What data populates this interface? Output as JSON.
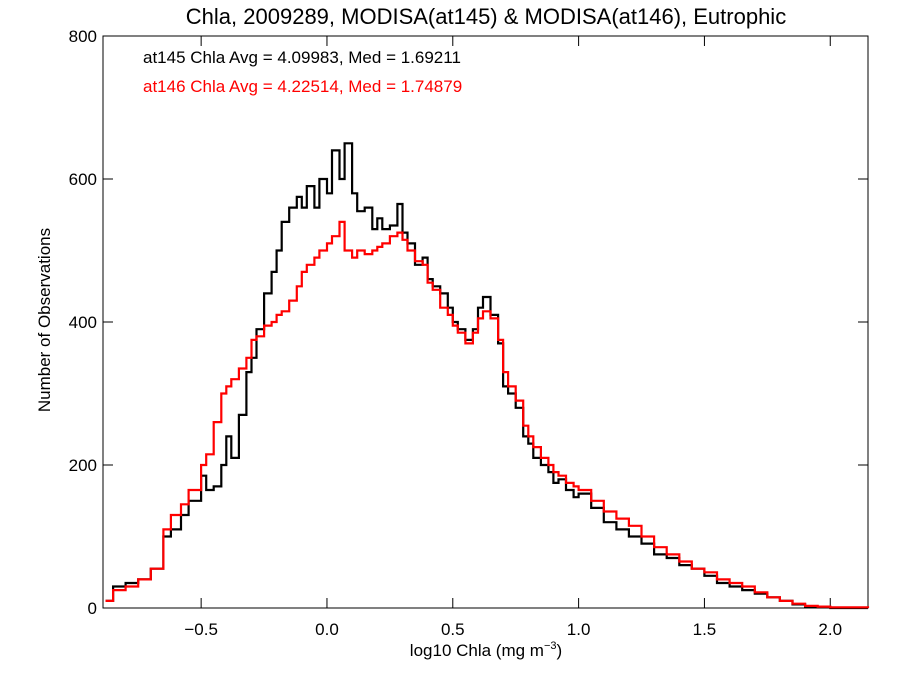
{
  "chart_data": {
    "type": "line",
    "title": "Chla, 2009289, MODISA(at145) & MODISA(at146), Eutrophic",
    "xlabel_main": "log10 Chla (mg m",
    "xlabel_sup": "−3",
    "xlabel_tail": ")",
    "ylabel": "Number of Observations",
    "xlim": [
      -0.89,
      2.15
    ],
    "ylim": [
      0,
      800
    ],
    "x_ticks": [
      -0.5,
      0.0,
      0.5,
      1.0,
      1.5,
      2.0
    ],
    "x_tick_labels": [
      "−0.5",
      "0.0",
      "0.5",
      "1.0",
      "1.5",
      "2.0"
    ],
    "y_ticks": [
      0,
      200,
      400,
      600,
      800
    ],
    "y_tick_labels": [
      "0",
      "200",
      "400",
      "600",
      "800"
    ],
    "step": "histogram",
    "annotations": [
      {
        "text": "at145 Chla Avg = 4.09983, Med = 1.69211",
        "color": "#000000"
      },
      {
        "text": "at146 Chla Avg = 4.22514, Med = 1.74879",
        "color": "#ff0000"
      }
    ],
    "series": [
      {
        "color": "#000000",
        "points": [
          [
            -0.88,
            10
          ],
          [
            -0.85,
            30
          ],
          [
            -0.8,
            35
          ],
          [
            -0.75,
            40
          ],
          [
            -0.7,
            55
          ],
          [
            -0.65,
            100
          ],
          [
            -0.62,
            110
          ],
          [
            -0.58,
            130
          ],
          [
            -0.55,
            150
          ],
          [
            -0.5,
            185
          ],
          [
            -0.48,
            165
          ],
          [
            -0.45,
            170
          ],
          [
            -0.42,
            200
          ],
          [
            -0.4,
            240
          ],
          [
            -0.38,
            210
          ],
          [
            -0.35,
            270
          ],
          [
            -0.32,
            330
          ],
          [
            -0.3,
            350
          ],
          [
            -0.28,
            390
          ],
          [
            -0.25,
            440
          ],
          [
            -0.22,
            470
          ],
          [
            -0.2,
            500
          ],
          [
            -0.18,
            540
          ],
          [
            -0.15,
            560
          ],
          [
            -0.12,
            575
          ],
          [
            -0.1,
            560
          ],
          [
            -0.08,
            590
          ],
          [
            -0.05,
            560
          ],
          [
            -0.03,
            600
          ],
          [
            0.0,
            580
          ],
          [
            0.02,
            640
          ],
          [
            0.05,
            600
          ],
          [
            0.07,
            650
          ],
          [
            0.1,
            580
          ],
          [
            0.12,
            555
          ],
          [
            0.15,
            560
          ],
          [
            0.18,
            530
          ],
          [
            0.2,
            545
          ],
          [
            0.22,
            530
          ],
          [
            0.25,
            535
          ],
          [
            0.28,
            565
          ],
          [
            0.3,
            525
          ],
          [
            0.32,
            510
          ],
          [
            0.35,
            480
          ],
          [
            0.38,
            490
          ],
          [
            0.4,
            460
          ],
          [
            0.42,
            450
          ],
          [
            0.45,
            440
          ],
          [
            0.48,
            420
          ],
          [
            0.5,
            400
          ],
          [
            0.52,
            390
          ],
          [
            0.55,
            375
          ],
          [
            0.58,
            390
          ],
          [
            0.6,
            420
          ],
          [
            0.62,
            435
          ],
          [
            0.65,
            410
          ],
          [
            0.68,
            370
          ],
          [
            0.7,
            310
          ],
          [
            0.72,
            300
          ],
          [
            0.75,
            280
          ],
          [
            0.78,
            240
          ],
          [
            0.8,
            230
          ],
          [
            0.82,
            210
          ],
          [
            0.85,
            200
          ],
          [
            0.88,
            190
          ],
          [
            0.9,
            175
          ],
          [
            0.92,
            180
          ],
          [
            0.95,
            165
          ],
          [
            0.98,
            155
          ],
          [
            1.0,
            160
          ],
          [
            1.05,
            140
          ],
          [
            1.1,
            120
          ],
          [
            1.15,
            110
          ],
          [
            1.2,
            100
          ],
          [
            1.25,
            90
          ],
          [
            1.3,
            75
          ],
          [
            1.35,
            70
          ],
          [
            1.4,
            60
          ],
          [
            1.45,
            55
          ],
          [
            1.5,
            45
          ],
          [
            1.55,
            35
          ],
          [
            1.6,
            30
          ],
          [
            1.65,
            25
          ],
          [
            1.7,
            20
          ],
          [
            1.75,
            15
          ],
          [
            1.8,
            10
          ],
          [
            1.85,
            5
          ],
          [
            1.9,
            2
          ],
          [
            1.95,
            1
          ],
          [
            2.0,
            0
          ],
          [
            2.15,
            0
          ]
        ]
      },
      {
        "color": "#ff0000",
        "points": [
          [
            -0.88,
            10
          ],
          [
            -0.85,
            25
          ],
          [
            -0.8,
            30
          ],
          [
            -0.75,
            40
          ],
          [
            -0.7,
            55
          ],
          [
            -0.65,
            110
          ],
          [
            -0.62,
            130
          ],
          [
            -0.58,
            145
          ],
          [
            -0.55,
            165
          ],
          [
            -0.5,
            200
          ],
          [
            -0.48,
            215
          ],
          [
            -0.45,
            260
          ],
          [
            -0.42,
            300
          ],
          [
            -0.4,
            310
          ],
          [
            -0.38,
            320
          ],
          [
            -0.35,
            335
          ],
          [
            -0.32,
            350
          ],
          [
            -0.3,
            375
          ],
          [
            -0.28,
            380
          ],
          [
            -0.25,
            395
          ],
          [
            -0.22,
            400
          ],
          [
            -0.2,
            410
          ],
          [
            -0.18,
            415
          ],
          [
            -0.15,
            430
          ],
          [
            -0.12,
            450
          ],
          [
            -0.1,
            470
          ],
          [
            -0.08,
            480
          ],
          [
            -0.05,
            490
          ],
          [
            -0.03,
            500
          ],
          [
            0.0,
            510
          ],
          [
            0.02,
            520
          ],
          [
            0.05,
            540
          ],
          [
            0.07,
            500
          ],
          [
            0.1,
            490
          ],
          [
            0.12,
            500
          ],
          [
            0.15,
            495
          ],
          [
            0.18,
            500
          ],
          [
            0.2,
            505
          ],
          [
            0.22,
            510
          ],
          [
            0.25,
            520
          ],
          [
            0.28,
            525
          ],
          [
            0.3,
            515
          ],
          [
            0.32,
            500
          ],
          [
            0.35,
            485
          ],
          [
            0.38,
            480
          ],
          [
            0.4,
            455
          ],
          [
            0.42,
            445
          ],
          [
            0.45,
            420
          ],
          [
            0.48,
            410
          ],
          [
            0.5,
            395
          ],
          [
            0.52,
            385
          ],
          [
            0.55,
            370
          ],
          [
            0.58,
            385
          ],
          [
            0.6,
            405
          ],
          [
            0.62,
            415
          ],
          [
            0.65,
            405
          ],
          [
            0.68,
            375
          ],
          [
            0.7,
            330
          ],
          [
            0.72,
            310
          ],
          [
            0.75,
            290
          ],
          [
            0.78,
            255
          ],
          [
            0.8,
            240
          ],
          [
            0.82,
            225
          ],
          [
            0.85,
            210
          ],
          [
            0.88,
            200
          ],
          [
            0.9,
            190
          ],
          [
            0.92,
            185
          ],
          [
            0.95,
            175
          ],
          [
            0.98,
            170
          ],
          [
            1.0,
            165
          ],
          [
            1.05,
            150
          ],
          [
            1.1,
            135
          ],
          [
            1.15,
            125
          ],
          [
            1.2,
            115
          ],
          [
            1.25,
            100
          ],
          [
            1.3,
            85
          ],
          [
            1.35,
            75
          ],
          [
            1.4,
            65
          ],
          [
            1.45,
            55
          ],
          [
            1.5,
            50
          ],
          [
            1.55,
            40
          ],
          [
            1.6,
            35
          ],
          [
            1.65,
            30
          ],
          [
            1.7,
            22
          ],
          [
            1.75,
            15
          ],
          [
            1.8,
            10
          ],
          [
            1.85,
            6
          ],
          [
            1.9,
            3
          ],
          [
            1.95,
            2
          ],
          [
            2.0,
            1
          ],
          [
            2.15,
            0
          ]
        ]
      }
    ]
  }
}
